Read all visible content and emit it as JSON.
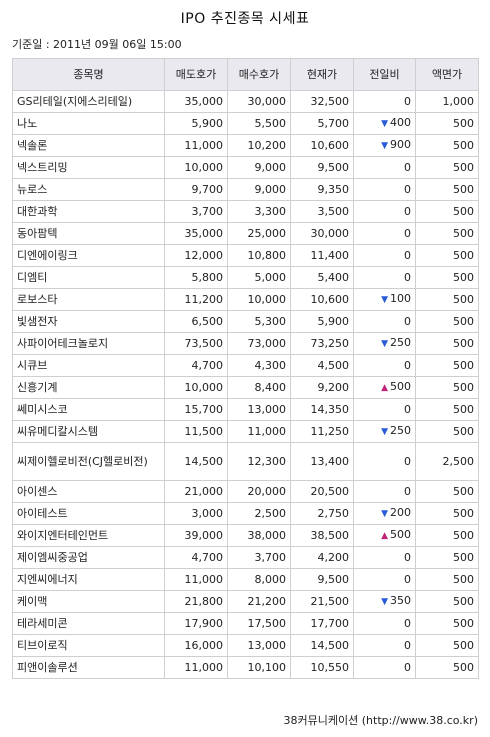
{
  "title": "IPO 추진종목 시세표",
  "baseline": "기준일 : 2011년 09월 06일 15:00",
  "columns": [
    "종목명",
    "매도호가",
    "매수호가",
    "현재가",
    "전일비",
    "액면가"
  ],
  "rows": [
    {
      "name": "GS리테일(지에스리테일)",
      "ask": "35,000",
      "bid": "30,000",
      "price": "32,500",
      "dir": "",
      "change": "0",
      "par": "1,000"
    },
    {
      "name": "나노",
      "ask": "5,900",
      "bid": "5,500",
      "price": "5,700",
      "dir": "down",
      "change": "400",
      "par": "500"
    },
    {
      "name": "넥솔론",
      "ask": "11,000",
      "bid": "10,200",
      "price": "10,600",
      "dir": "down",
      "change": "900",
      "par": "500"
    },
    {
      "name": "넥스트리밍",
      "ask": "10,000",
      "bid": "9,000",
      "price": "9,500",
      "dir": "",
      "change": "0",
      "par": "500"
    },
    {
      "name": "뉴로스",
      "ask": "9,700",
      "bid": "9,000",
      "price": "9,350",
      "dir": "",
      "change": "0",
      "par": "500"
    },
    {
      "name": "대한과학",
      "ask": "3,700",
      "bid": "3,300",
      "price": "3,500",
      "dir": "",
      "change": "0",
      "par": "500"
    },
    {
      "name": "동아팜텍",
      "ask": "35,000",
      "bid": "25,000",
      "price": "30,000",
      "dir": "",
      "change": "0",
      "par": "500"
    },
    {
      "name": "디엔에이링크",
      "ask": "12,000",
      "bid": "10,800",
      "price": "11,400",
      "dir": "",
      "change": "0",
      "par": "500"
    },
    {
      "name": "디엠티",
      "ask": "5,800",
      "bid": "5,000",
      "price": "5,400",
      "dir": "",
      "change": "0",
      "par": "500"
    },
    {
      "name": "로보스타",
      "ask": "11,200",
      "bid": "10,000",
      "price": "10,600",
      "dir": "down",
      "change": "100",
      "par": "500"
    },
    {
      "name": "빛샘전자",
      "ask": "6,500",
      "bid": "5,300",
      "price": "5,900",
      "dir": "",
      "change": "0",
      "par": "500"
    },
    {
      "name": "사파이어테크놀로지",
      "ask": "73,500",
      "bid": "73,000",
      "price": "73,250",
      "dir": "down",
      "change": "250",
      "par": "500"
    },
    {
      "name": "시큐브",
      "ask": "4,700",
      "bid": "4,300",
      "price": "4,500",
      "dir": "",
      "change": "0",
      "par": "500"
    },
    {
      "name": "신흥기계",
      "ask": "10,000",
      "bid": "8,400",
      "price": "9,200",
      "dir": "up",
      "change": "500",
      "par": "500"
    },
    {
      "name": "쎄미시스코",
      "ask": "15,700",
      "bid": "13,000",
      "price": "14,350",
      "dir": "",
      "change": "0",
      "par": "500"
    },
    {
      "name": "씨유메디칼시스템",
      "ask": "11,500",
      "bid": "11,000",
      "price": "11,250",
      "dir": "down",
      "change": "250",
      "par": "500"
    },
    {
      "name": "씨제이헬로비전(CJ헬로비전)",
      "ask": "14,500",
      "bid": "12,300",
      "price": "13,400",
      "dir": "",
      "change": "0",
      "par": "2,500",
      "tall": true
    },
    {
      "name": "아이센스",
      "ask": "21,000",
      "bid": "20,000",
      "price": "20,500",
      "dir": "",
      "change": "0",
      "par": "500"
    },
    {
      "name": "아이테스트",
      "ask": "3,000",
      "bid": "2,500",
      "price": "2,750",
      "dir": "down",
      "change": "200",
      "par": "500"
    },
    {
      "name": "와이지엔터테인먼트",
      "ask": "39,000",
      "bid": "38,000",
      "price": "38,500",
      "dir": "up",
      "change": "500",
      "par": "500"
    },
    {
      "name": "제이엠씨중공업",
      "ask": "4,700",
      "bid": "3,700",
      "price": "4,200",
      "dir": "",
      "change": "0",
      "par": "500"
    },
    {
      "name": "지엔씨에너지",
      "ask": "11,000",
      "bid": "8,000",
      "price": "9,500",
      "dir": "",
      "change": "0",
      "par": "500"
    },
    {
      "name": "케이맥",
      "ask": "21,800",
      "bid": "21,200",
      "price": "21,500",
      "dir": "down",
      "change": "350",
      "par": "500"
    },
    {
      "name": "테라세미콘",
      "ask": "17,900",
      "bid": "17,500",
      "price": "17,700",
      "dir": "",
      "change": "0",
      "par": "500"
    },
    {
      "name": "티브이로직",
      "ask": "16,000",
      "bid": "13,000",
      "price": "14,500",
      "dir": "",
      "change": "0",
      "par": "500"
    },
    {
      "name": "피앤이솔루션",
      "ask": "11,000",
      "bid": "10,100",
      "price": "10,550",
      "dir": "",
      "change": "0",
      "par": "500"
    }
  ],
  "footer": "38커뮤니케이션 (http://www.38.co.kr)"
}
